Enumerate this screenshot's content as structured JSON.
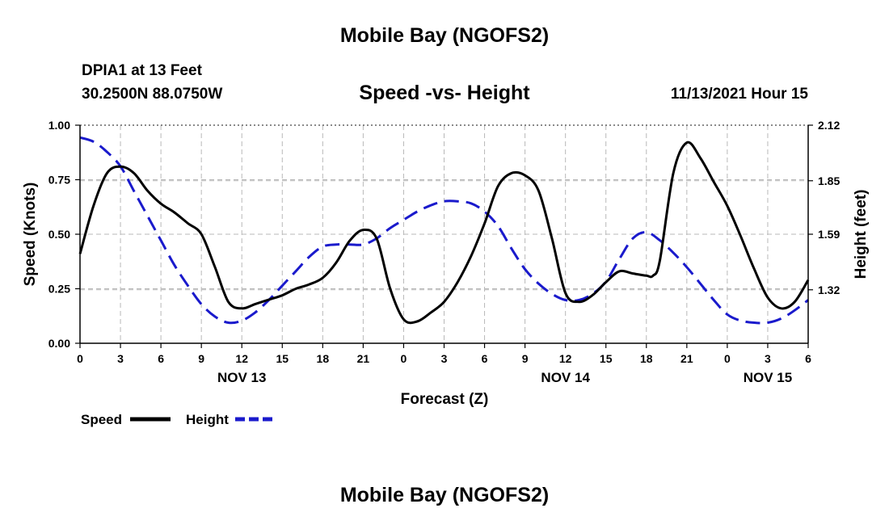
{
  "header": {
    "title": "Mobile Bay (NGOFS2)",
    "station": "DPIA1 at 13 Feet",
    "coords": "30.2500N  88.0750W",
    "subtitle": "Speed -vs- Height",
    "datetime": "11/13/2021 Hour 15"
  },
  "footer": {
    "title": "Mobile Bay (NGOFS2)"
  },
  "colors": {
    "speed": "#000000",
    "height": "#1a1acc",
    "grid": "#b8b8b8"
  },
  "chart_data": {
    "type": "line",
    "title": "Speed -vs- Height",
    "xlabel": "Forecast (Z)",
    "ylabel": "Speed (Knots)",
    "y2label": "Height (feet)",
    "grid": true,
    "legend_position": "bottom-left",
    "xlim": [
      0,
      54
    ],
    "ylim": [
      0,
      1.0
    ],
    "y2lim": [
      1.06,
      2.12
    ],
    "x_ticks": [
      0,
      3,
      6,
      9,
      12,
      15,
      18,
      21,
      24,
      27,
      30,
      33,
      36,
      39,
      42,
      45,
      48,
      51,
      54
    ],
    "x_tick_labels": [
      "0",
      "3",
      "6",
      "9",
      "12",
      "15",
      "18",
      "21",
      "0",
      "3",
      "6",
      "9",
      "12",
      "15",
      "18",
      "21",
      "0",
      "3",
      "6"
    ],
    "day_labels": [
      {
        "x": 12,
        "label": "NOV 13"
      },
      {
        "x": 36,
        "label": "NOV 14"
      },
      {
        "x": 51,
        "label": "NOV 15"
      }
    ],
    "y_ticks": [
      0.0,
      0.25,
      0.5,
      0.75,
      1.0
    ],
    "y_tick_labels": [
      "0.00",
      "0.25",
      "0.50",
      "0.75",
      "1.00"
    ],
    "y2_ticks": [
      1.32,
      1.59,
      1.85,
      2.12
    ],
    "y2_tick_labels": [
      "1.32",
      "1.59",
      "1.85",
      "2.12"
    ],
    "series": [
      {
        "name": "Speed",
        "axis": "left",
        "style": "solid",
        "x": [
          0,
          1,
          2,
          3,
          4,
          5,
          6,
          7,
          8,
          9,
          10,
          11,
          12,
          13,
          14,
          15,
          16,
          17,
          18,
          19,
          20,
          21,
          22,
          23,
          24,
          25,
          26,
          27,
          28,
          29,
          30,
          31,
          32,
          33,
          34,
          35,
          36,
          37,
          38,
          39,
          40,
          41,
          42,
          42.5,
          43,
          44,
          45,
          46,
          47,
          48,
          49,
          50,
          51,
          52,
          53,
          54
        ],
        "values": [
          0.41,
          0.63,
          0.78,
          0.81,
          0.78,
          0.7,
          0.64,
          0.6,
          0.55,
          0.5,
          0.35,
          0.19,
          0.16,
          0.18,
          0.2,
          0.22,
          0.25,
          0.27,
          0.3,
          0.37,
          0.47,
          0.52,
          0.48,
          0.25,
          0.11,
          0.1,
          0.14,
          0.19,
          0.28,
          0.4,
          0.55,
          0.72,
          0.78,
          0.77,
          0.7,
          0.48,
          0.23,
          0.19,
          0.22,
          0.28,
          0.33,
          0.32,
          0.31,
          0.31,
          0.38,
          0.78,
          0.92,
          0.85,
          0.74,
          0.63,
          0.49,
          0.34,
          0.21,
          0.16,
          0.19,
          0.29
        ]
      },
      {
        "name": "Height",
        "axis": "right",
        "style": "dashed",
        "x": [
          0,
          1,
          2,
          3,
          4,
          5,
          6,
          7,
          8,
          9,
          10,
          11,
          12,
          13,
          14,
          15,
          16,
          17,
          18,
          19,
          20,
          21,
          22,
          23,
          24,
          25,
          26,
          27,
          28,
          29,
          30,
          31,
          32,
          33,
          34,
          35,
          36,
          37,
          38,
          39,
          40,
          41,
          42,
          43,
          44,
          45,
          46,
          47,
          48,
          49,
          50,
          51,
          52,
          53,
          54
        ],
        "values": [
          2.06,
          2.04,
          1.99,
          1.92,
          1.8,
          1.68,
          1.56,
          1.44,
          1.34,
          1.25,
          1.19,
          1.16,
          1.17,
          1.21,
          1.27,
          1.34,
          1.41,
          1.48,
          1.53,
          1.54,
          1.54,
          1.54,
          1.57,
          1.62,
          1.66,
          1.7,
          1.73,
          1.75,
          1.75,
          1.74,
          1.7,
          1.63,
          1.52,
          1.42,
          1.35,
          1.3,
          1.27,
          1.27,
          1.3,
          1.36,
          1.47,
          1.57,
          1.6,
          1.56,
          1.5,
          1.43,
          1.35,
          1.27,
          1.2,
          1.17,
          1.16,
          1.16,
          1.18,
          1.22,
          1.27
        ]
      }
    ]
  }
}
